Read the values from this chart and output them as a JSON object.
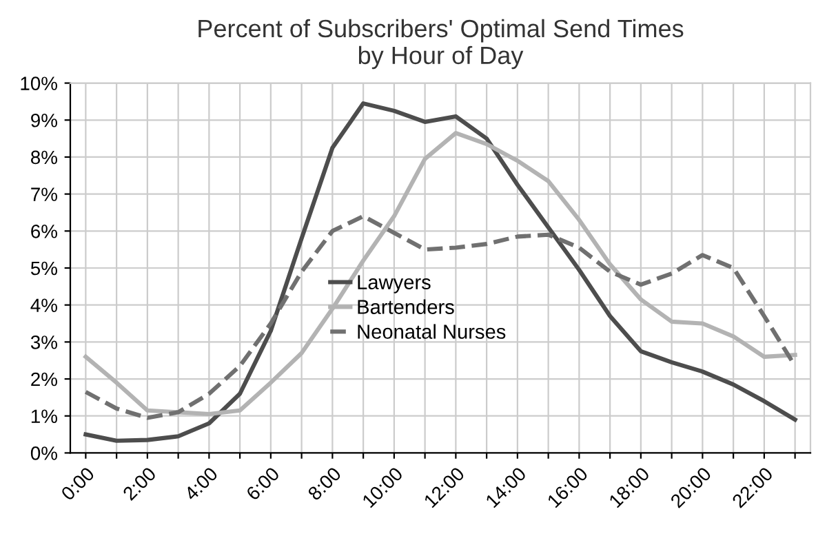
{
  "chart_data": {
    "type": "line",
    "title": "Percent of Subscribers' Optimal Send Times\nby Hour of Day",
    "categories": [
      "0:00",
      null,
      "2:00",
      null,
      "4:00",
      null,
      "6:00",
      null,
      "8:00",
      null,
      "10:00",
      null,
      "12:00",
      null,
      "14:00",
      null,
      "16:00",
      null,
      "18:00",
      null,
      "20:00",
      null,
      "22:00",
      null
    ],
    "series": [
      {
        "name": "Lawyers",
        "color": "#4d4d4d",
        "line_style": "solid",
        "values": [
          0.5,
          0.33,
          0.35,
          0.45,
          0.8,
          1.6,
          3.3,
          5.8,
          8.25,
          9.45,
          9.25,
          8.95,
          9.1,
          8.5,
          7.25,
          6.1,
          4.95,
          3.7,
          2.75,
          2.45,
          2.2,
          1.85,
          1.4,
          0.9
        ]
      },
      {
        "name": "Bartenders",
        "color": "#b3b3b3",
        "line_style": "solid",
        "values": [
          2.6,
          1.9,
          1.15,
          1.1,
          1.05,
          1.15,
          1.9,
          2.7,
          3.9,
          5.2,
          6.4,
          7.95,
          8.65,
          8.35,
          7.9,
          7.35,
          6.3,
          5.1,
          4.15,
          3.55,
          3.5,
          3.15,
          2.6,
          2.65
        ]
      },
      {
        "name": "Neonatal Nurses",
        "color": "#707070",
        "line_style": "dashed",
        "values": [
          1.65,
          1.2,
          0.95,
          1.1,
          1.6,
          2.35,
          3.5,
          4.9,
          6.0,
          6.4,
          5.95,
          5.5,
          5.55,
          5.65,
          5.85,
          5.9,
          5.55,
          4.9,
          4.55,
          4.85,
          5.35,
          5.0,
          3.7,
          2.35
        ]
      }
    ],
    "ylim": [
      0,
      10
    ],
    "yticks": [
      {
        "value": 0,
        "label": "0%"
      },
      {
        "value": 1,
        "label": "1%"
      },
      {
        "value": 2,
        "label": "2%"
      },
      {
        "value": 3,
        "label": "3%"
      },
      {
        "value": 4,
        "label": "4%"
      },
      {
        "value": 5,
        "label": "5%"
      },
      {
        "value": 6,
        "label": "6%"
      },
      {
        "value": 7,
        "label": "7%"
      },
      {
        "value": 8,
        "label": "8%"
      },
      {
        "value": 9,
        "label": "9%"
      },
      {
        "value": 10,
        "label": "10%"
      }
    ],
    "grid": true,
    "legend": "center"
  }
}
